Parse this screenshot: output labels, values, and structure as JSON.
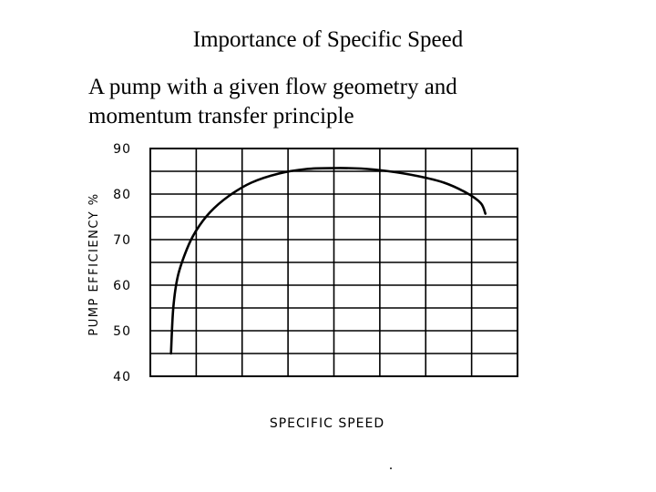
{
  "slide": {
    "title": "Importance of Specific Speed",
    "body_lines": [
      "A pump with a given flow geometry and",
      "momentum transfer principle"
    ],
    "footer": "."
  },
  "chart_data": {
    "type": "line",
    "title": "",
    "xlabel": "SPECIFIC SPEED",
    "ylabel": "PUMP EFFICIENCY %",
    "ylim": [
      40,
      90
    ],
    "xlim": [
      0,
      8
    ],
    "yticks": [
      40,
      50,
      60,
      70,
      80,
      90
    ],
    "x_gridlines": 8,
    "y_gridlines": 10,
    "grid": true,
    "x_tick_labels_shown": false,
    "series": [
      {
        "name": "",
        "x": [
          0.45,
          0.5,
          0.6,
          0.8,
          1.0,
          1.3,
          1.7,
          2.2,
          2.8,
          3.4,
          4.0,
          4.6,
          5.2,
          5.8,
          6.4,
          6.9,
          7.2,
          7.3
        ],
        "y": [
          45,
          55,
          62,
          68,
          72,
          76,
          79.5,
          82.5,
          84.5,
          85.5,
          85.7,
          85.6,
          85,
          84,
          82.5,
          80.2,
          78,
          75.7
        ]
      }
    ],
    "line_color": "#000000"
  }
}
